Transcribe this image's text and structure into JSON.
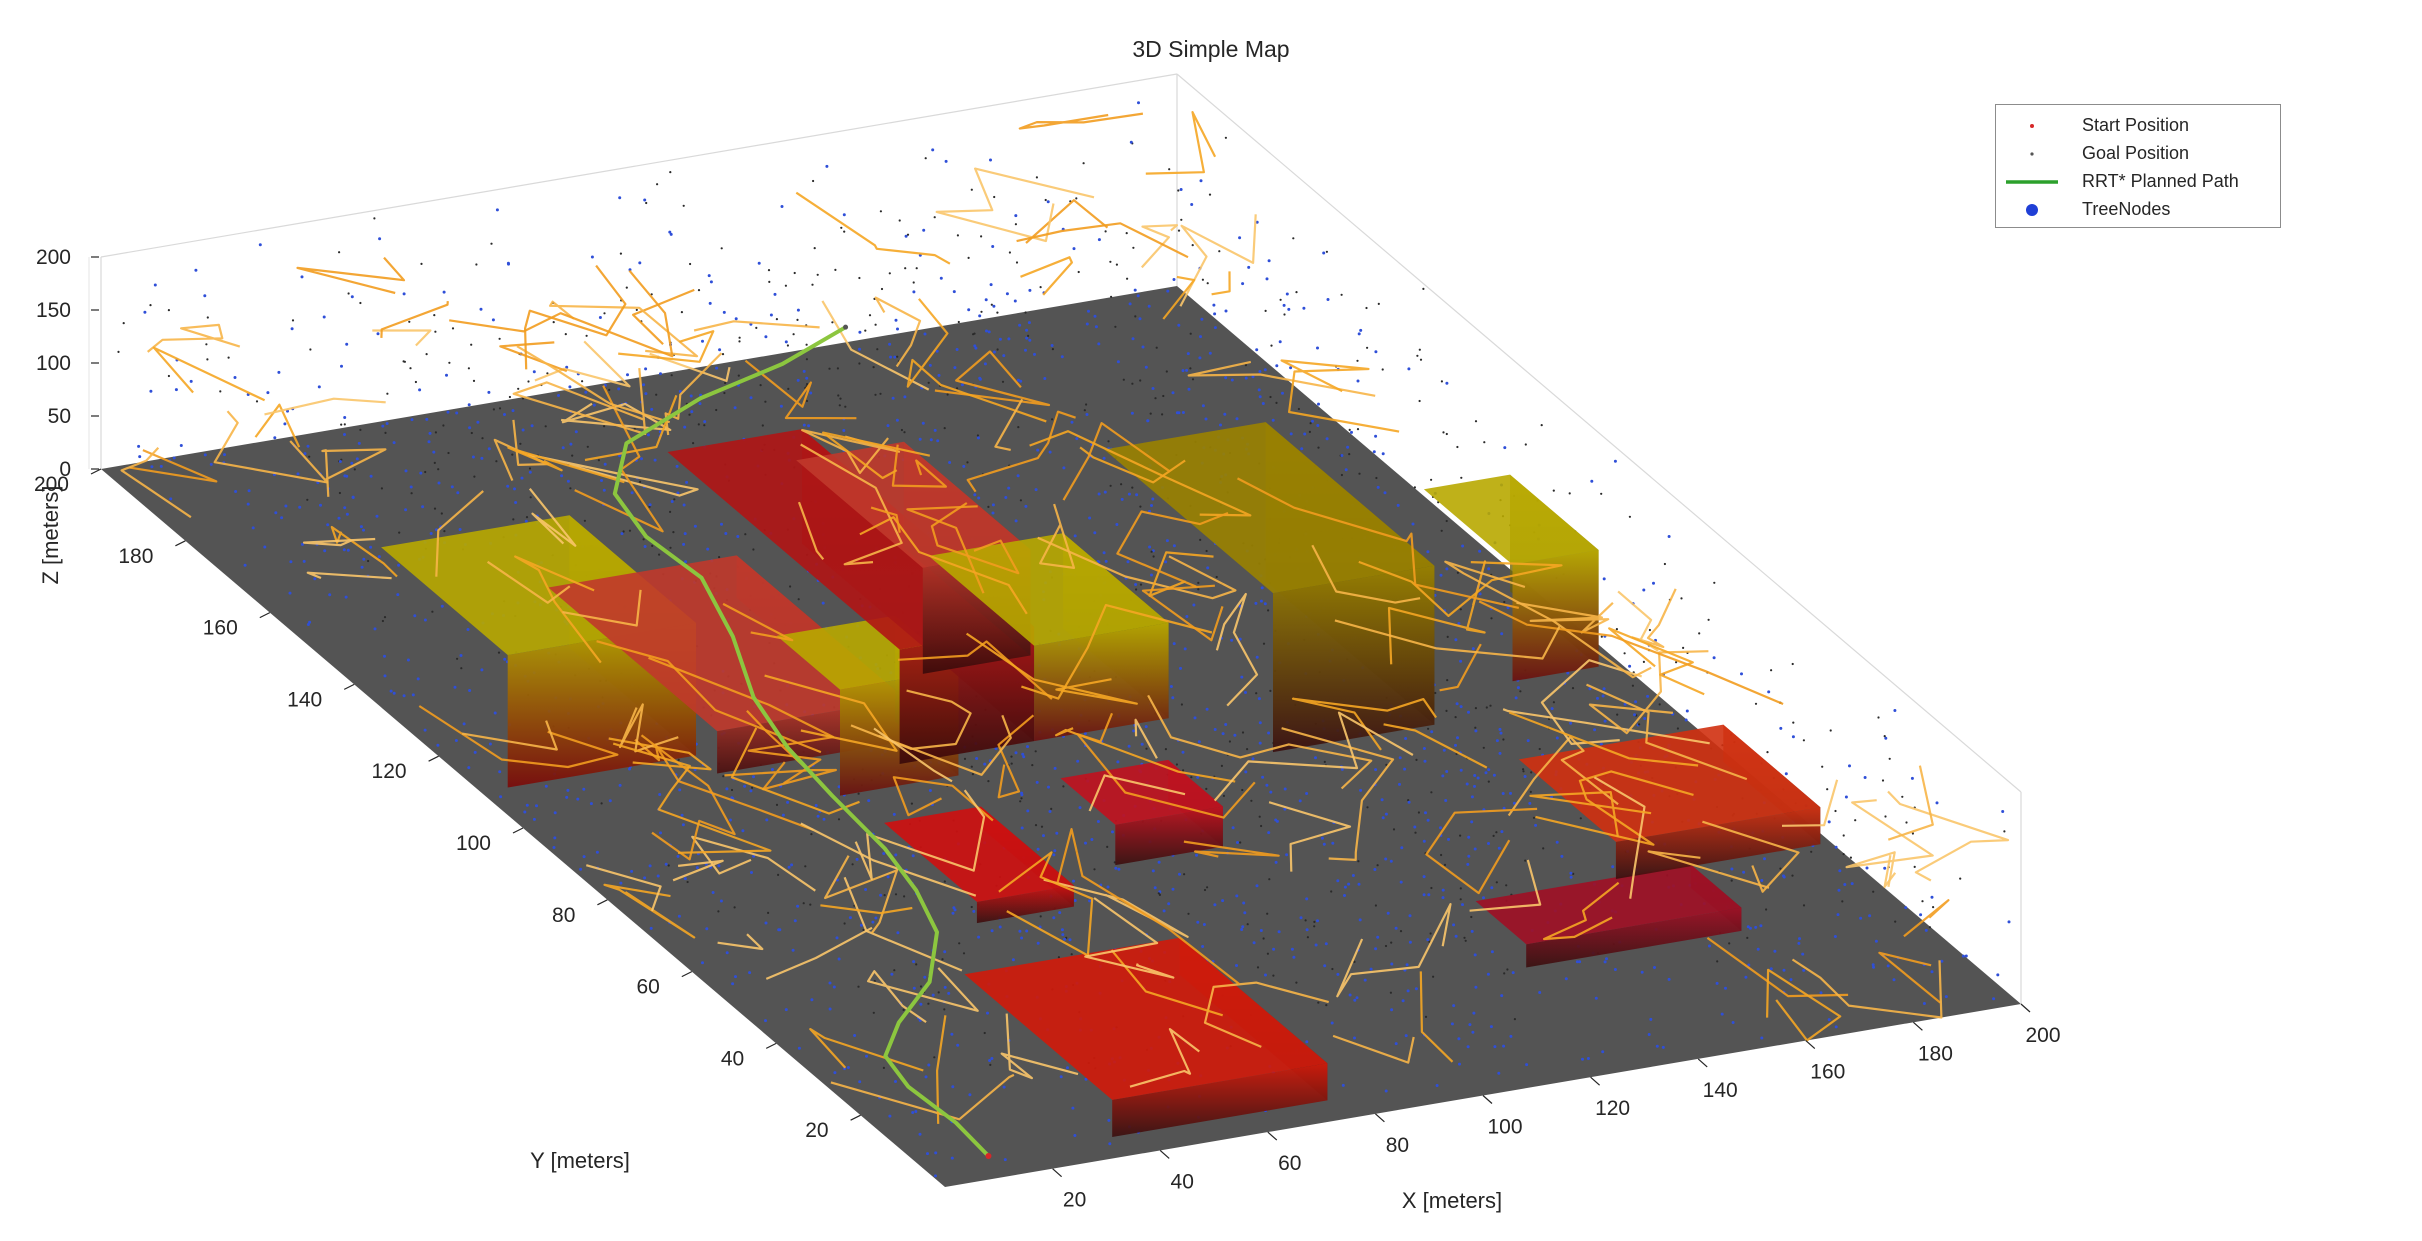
{
  "chart_data": {
    "type": "scatter",
    "subtype": "3d-scatter-with-obstacles-tree-and-path",
    "title": "3D Simple Map",
    "xlabel": "X [meters]",
    "ylabel": "Y [meters]",
    "zlabel": "Z [meters]",
    "xlim": [
      0,
      200
    ],
    "ylim": [
      0,
      200
    ],
    "zlim": [
      0,
      200
    ],
    "x_ticks": [
      20,
      40,
      60,
      80,
      100,
      120,
      140,
      160,
      180,
      200
    ],
    "y_ticks": [
      20,
      40,
      60,
      80,
      100,
      120,
      140,
      160,
      180,
      200
    ],
    "z_ticks": [
      0,
      50,
      100,
      150,
      200
    ],
    "grid": true,
    "legend_position": "top-right",
    "legend": [
      {
        "label": "Start Position",
        "marker": "dot",
        "color": "#d62728"
      },
      {
        "label": "Goal Position",
        "marker": "dot",
        "color": "#555555"
      },
      {
        "label": "RRT* Planned Path",
        "marker": "line",
        "color": "#2ca02c"
      },
      {
        "label": "TreeNodes",
        "marker": "filled-circle",
        "color": "#1f3fd6"
      }
    ],
    "ground_color": "#545454",
    "obstacles": [
      {
        "x": [
          5,
          40
        ],
        "y": [
          110,
          140
        ],
        "z": [
          0,
          125
        ],
        "color_top": "#b8a800",
        "color_bottom": "#7a0a0a"
      },
      {
        "x": [
          35,
          75
        ],
        "y": [
          5,
          40
        ],
        "z": [
          0,
          35
        ],
        "color_top": "#d21a0a",
        "color_bottom": "#3a1010"
      },
      {
        "x": [
          40,
          75
        ],
        "y": [
          105,
          145
        ],
        "z": [
          0,
          40
        ],
        "color_top": "#c0392b",
        "color_bottom": "#4a1010"
      },
      {
        "x": [
          53,
          71
        ],
        "y": [
          60,
          82
        ],
        "z": [
          0,
          20
        ],
        "color_top": "#cf1010",
        "color_bottom": "#3a1010"
      },
      {
        "x": [
          55,
          77
        ],
        "y": [
          95,
          110
        ],
        "z": [
          0,
          100
        ],
        "color_top": "#b8a800",
        "color_bottom": "#6a1010"
      },
      {
        "x": [
          70,
          95
        ],
        "y": [
          100,
          155
        ],
        "z": [
          0,
          108
        ],
        "color_top": "#b01515",
        "color_bottom": "#3a0a0a"
      },
      {
        "x": [
          90,
          110
        ],
        "y": [
          120,
          150
        ],
        "z": [
          0,
          100
        ],
        "color_top": "#c0392b",
        "color_bottom": "#3a0a0a"
      },
      {
        "x": [
          85,
          105
        ],
        "y": [
          68,
          81
        ],
        "z": [
          0,
          38
        ],
        "color_top": "#c1121f",
        "color_bottom": "#3a1010"
      },
      {
        "x": [
          95,
          120
        ],
        "y": [
          100,
          125
        ],
        "z": [
          0,
          90
        ],
        "color_top": "#b8a800",
        "color_bottom": "#6a1010"
      },
      {
        "x": [
          130,
          160
        ],
        "y": [
          88,
          128
        ],
        "z": [
          0,
          150
        ],
        "color_top": "#9a8200",
        "color_bottom": "#3a1010"
      },
      {
        "x": [
          130,
          170
        ],
        "y": [
          28,
          40
        ],
        "z": [
          0,
          22
        ],
        "color_top": "#a01025",
        "color_bottom": "#3a1010"
      },
      {
        "x": [
          180,
          196
        ],
        "y": [
          95,
          116
        ],
        "z": [
          0,
          110
        ],
        "color_top": "#b8a800",
        "color_bottom": "#6a1010"
      },
      {
        "x": [
          160,
          198
        ],
        "y": [
          45,
          68
        ],
        "z": [
          0,
          35
        ],
        "color_top": "#d03010",
        "color_bottom": "#3a1010"
      }
    ],
    "planned_path": {
      "name": "RRT* Planned Path",
      "points": [
        [
          12,
          5,
          2
        ],
        [
          13,
          14,
          2
        ],
        [
          12,
          24,
          3
        ],
        [
          14,
          32,
          3
        ],
        [
          22,
          39,
          4
        ],
        [
          34,
          47,
          5
        ],
        [
          44,
          58,
          6
        ],
        [
          48,
          68,
          8
        ],
        [
          50,
          78,
          12
        ],
        [
          48,
          88,
          30
        ],
        [
          46,
          96,
          50
        ],
        [
          46,
          104,
          70
        ],
        [
          50,
          114,
          90
        ],
        [
          52,
          124,
          110
        ],
        [
          48,
          132,
          125
        ],
        [
          50,
          142,
          130
        ],
        [
          60,
          152,
          135
        ],
        [
          80,
          160,
          133
        ],
        [
          100,
          166,
          128
        ],
        [
          118,
          174,
          120
        ]
      ]
    },
    "start_position": [
      12,
      5,
      2
    ],
    "goal_position": [
      118,
      174,
      120
    ]
  }
}
